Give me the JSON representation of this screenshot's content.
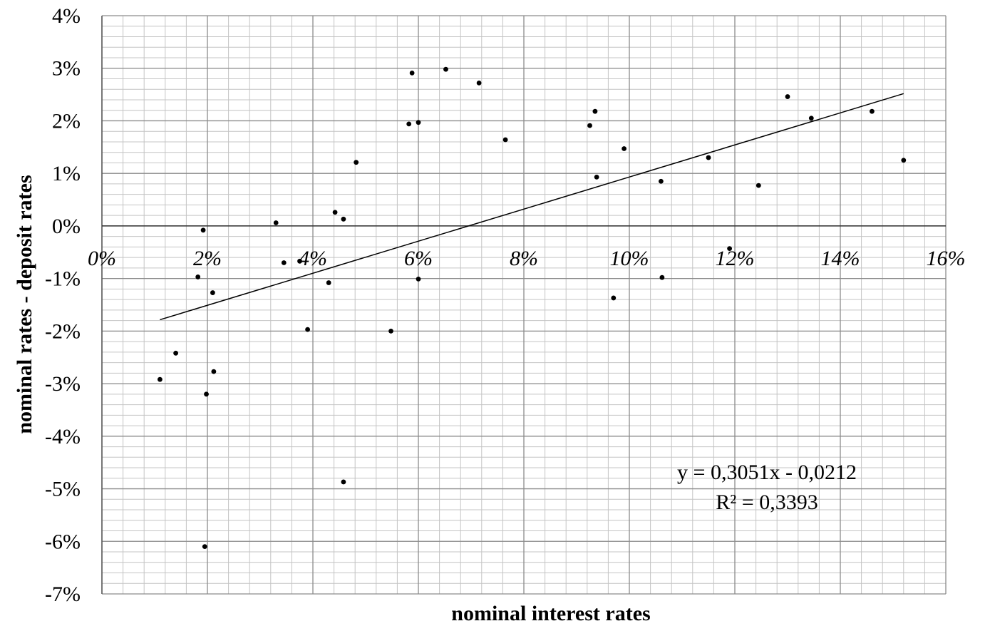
{
  "chart_data": {
    "type": "scatter",
    "title": "",
    "xlabel": "nominal interest rates",
    "ylabel": "nominal rates - deposit rates",
    "xlim": [
      0,
      16
    ],
    "ylim": [
      -7,
      4
    ],
    "x_ticks": [
      "0%",
      "2%",
      "4%",
      "6%",
      "8%",
      "10%",
      "12%",
      "14%",
      "16%"
    ],
    "y_ticks": [
      "4%",
      "3%",
      "2%",
      "1%",
      "0%",
      "-1%",
      "-2%",
      "-3%",
      "-4%",
      "-5%",
      "-6%",
      "-7%"
    ],
    "grid": true,
    "legend": "none",
    "series": [
      {
        "points": [
          [
            1.1,
            -2.92
          ],
          [
            1.4,
            -2.42
          ],
          [
            1.82,
            -0.97
          ],
          [
            1.92,
            -0.08
          ],
          [
            1.95,
            -6.1
          ],
          [
            1.98,
            -3.2
          ],
          [
            2.1,
            -1.27
          ],
          [
            2.12,
            -2.77
          ],
          [
            3.3,
            0.06
          ],
          [
            3.45,
            -0.7
          ],
          [
            3.75,
            -0.67
          ],
          [
            3.9,
            -1.97
          ],
          [
            4.3,
            -1.08
          ],
          [
            4.42,
            0.26
          ],
          [
            4.58,
            0.13
          ],
          [
            4.58,
            -4.87
          ],
          [
            4.82,
            1.21
          ],
          [
            5.48,
            -2.0
          ],
          [
            5.82,
            1.94
          ],
          [
            5.88,
            2.91
          ],
          [
            6.0,
            1.97
          ],
          [
            6.0,
            -1.01
          ],
          [
            6.52,
            2.98
          ],
          [
            7.15,
            2.72
          ],
          [
            7.65,
            1.64
          ],
          [
            9.25,
            1.91
          ],
          [
            9.35,
            2.18
          ],
          [
            9.38,
            0.93
          ],
          [
            9.7,
            -1.37
          ],
          [
            9.9,
            1.47
          ],
          [
            10.6,
            0.85
          ],
          [
            10.62,
            -0.98
          ],
          [
            11.5,
            1.3
          ],
          [
            11.9,
            -0.43
          ],
          [
            12.45,
            0.77
          ],
          [
            13.0,
            2.46
          ],
          [
            13.45,
            2.05
          ],
          [
            14.6,
            2.18
          ],
          [
            15.2,
            1.25
          ]
        ]
      }
    ],
    "trendline": {
      "slope": 0.3051,
      "intercept": -0.0212,
      "x_range": [
        1.1,
        15.2
      ]
    },
    "annotation": {
      "equation": "y = 0,3051x - 0,0212",
      "r_squared": "R² = 0,3393"
    }
  }
}
